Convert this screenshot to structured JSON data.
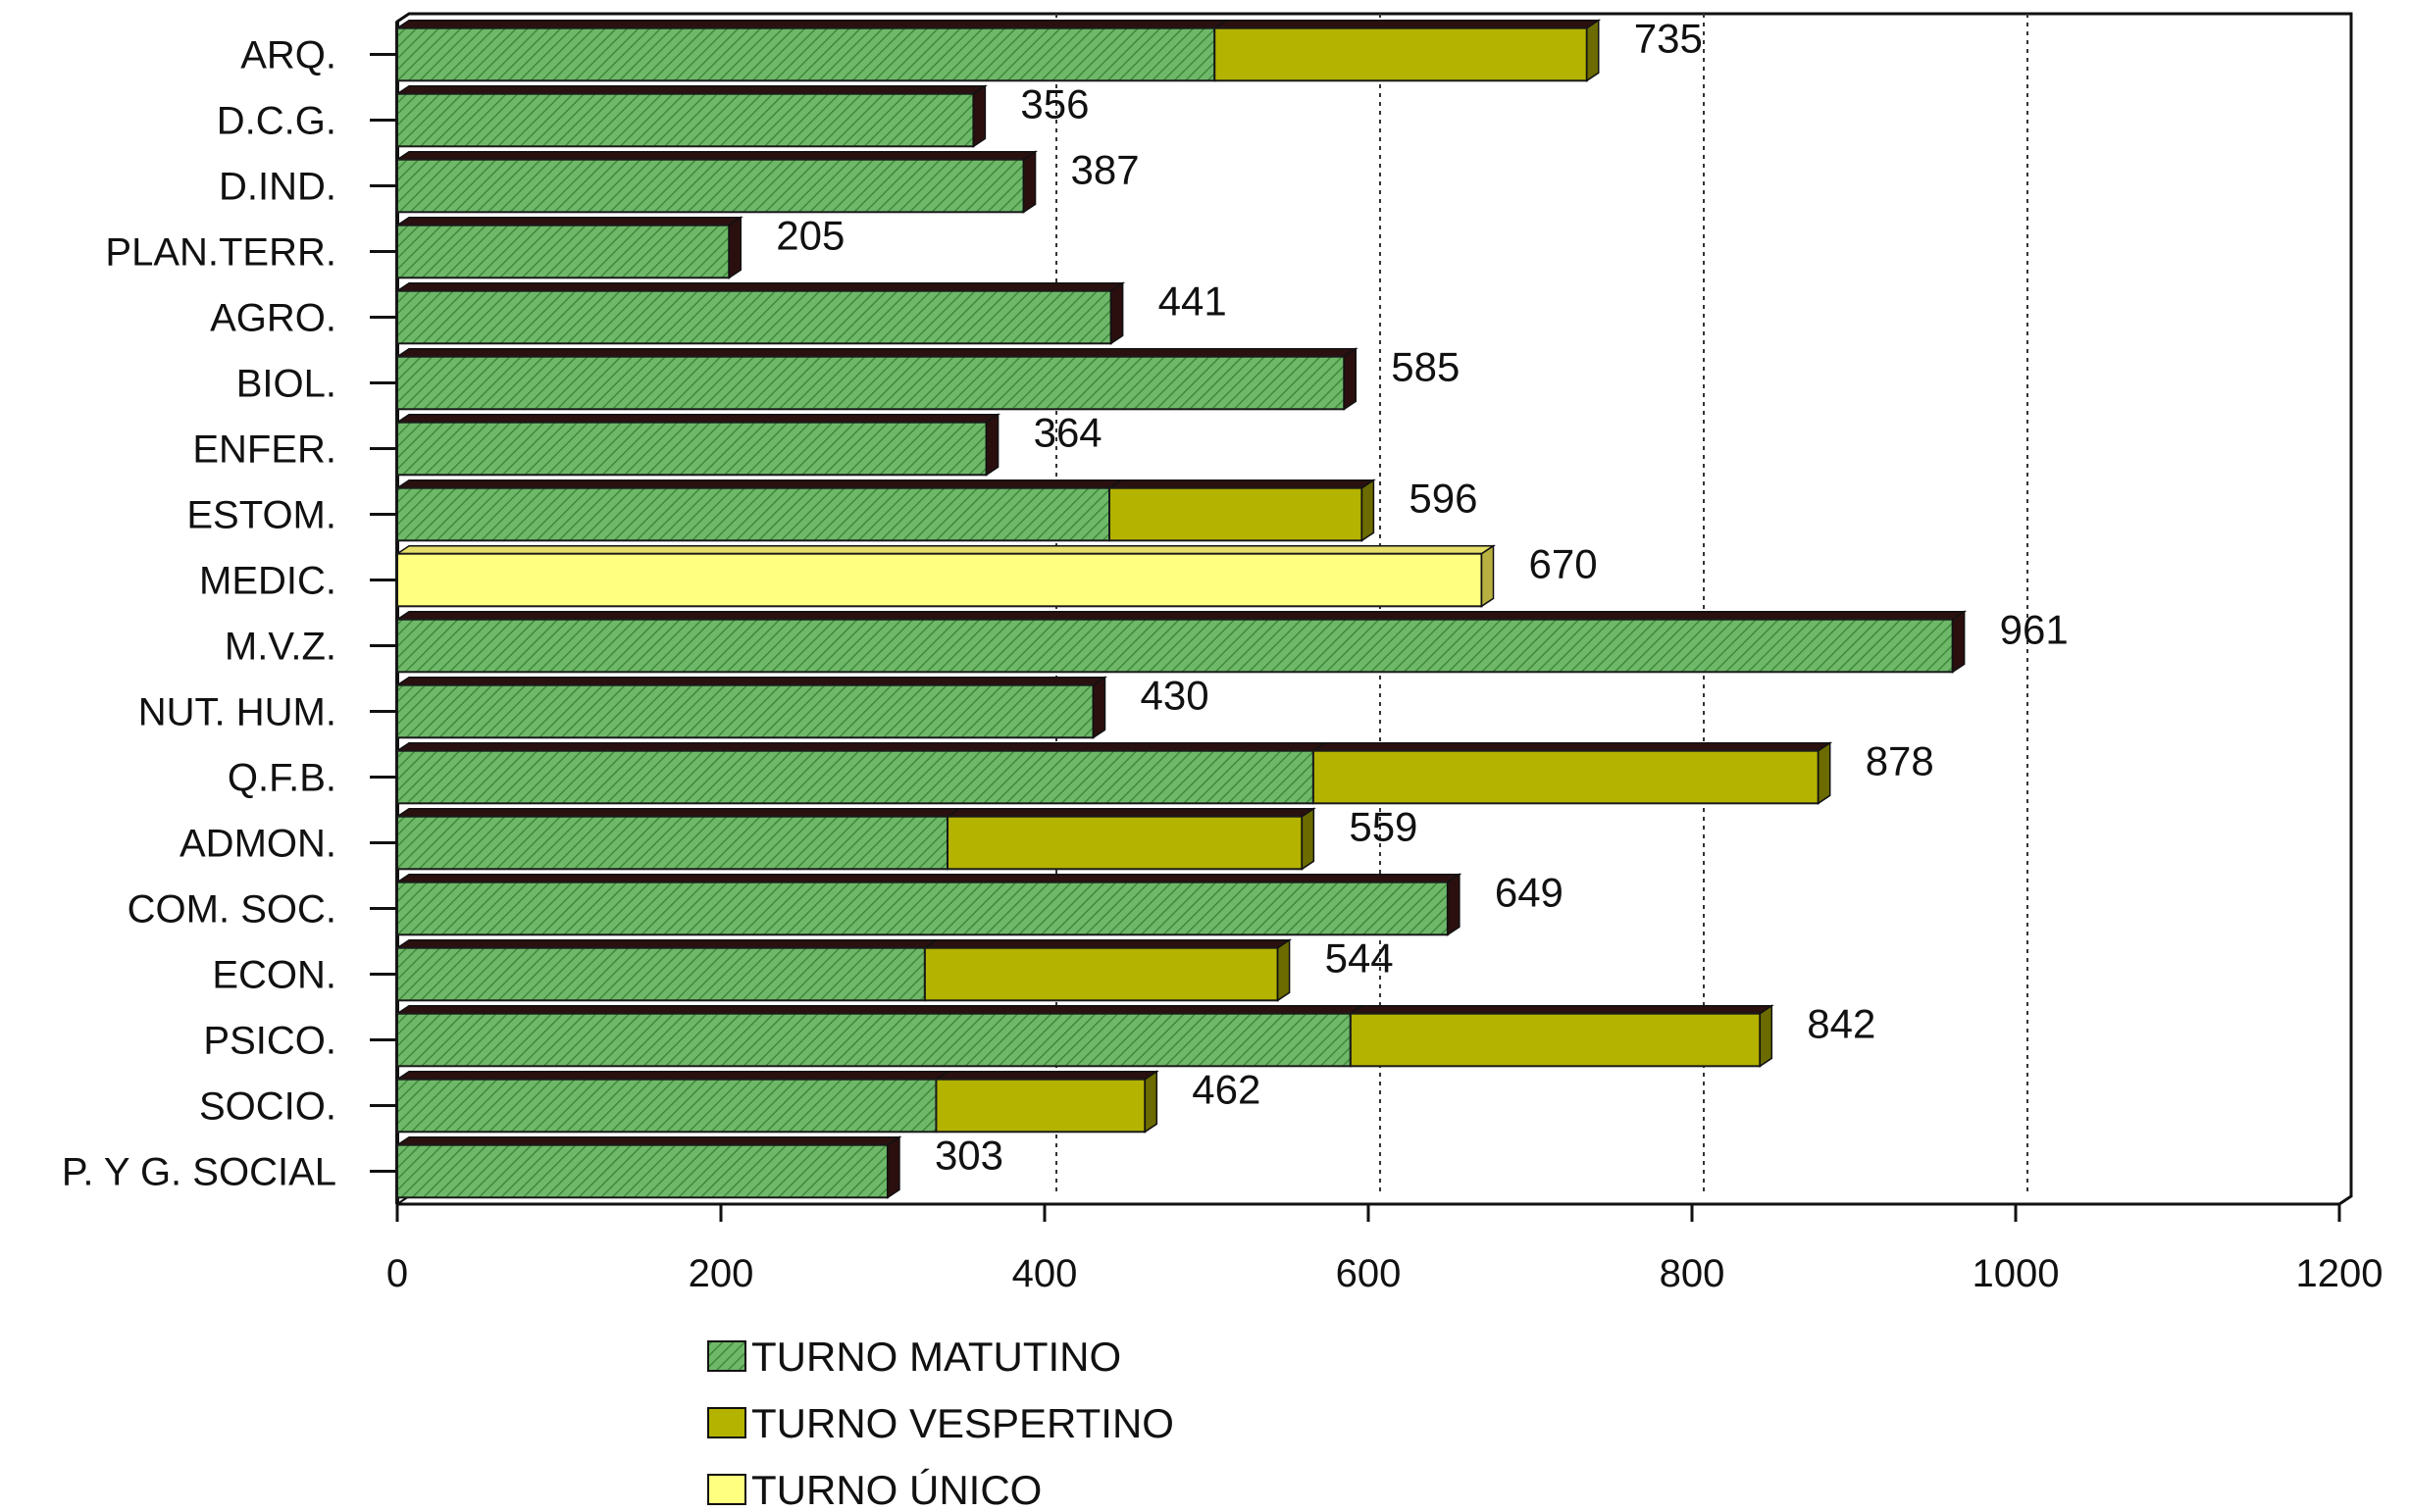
{
  "chart_data": {
    "type": "bar",
    "orientation": "horizontal",
    "stacked": true,
    "title": "",
    "xlabel": "",
    "ylabel": "",
    "xlim": [
      0,
      1200
    ],
    "x_ticks": [
      "0",
      "200",
      "400",
      "600",
      "800",
      "1000",
      "1200"
    ],
    "grid": "vertical dotted lines at 400, 600, 800, 1000",
    "legend_position": "bottom",
    "categories": [
      "ARQ.",
      "D.C.G.",
      "D.IND.",
      "PLAN.TERR.",
      "AGRO.",
      "BIOL.",
      "ENFER.",
      "ESTOM.",
      "MEDIC.",
      "M.V.Z.",
      "NUT. HUM.",
      "Q.F.B.",
      "ADMON.",
      "COM. SOC.",
      "ECON.",
      "PSICO.",
      "SOCIO.",
      "P. Y G. SOCIAL"
    ],
    "series": [
      {
        "name": "TURNO MATUTINO",
        "color": "#6fb86a",
        "values": [
          505,
          356,
          387,
          205,
          441,
          585,
          364,
          440,
          0,
          961,
          430,
          566,
          340,
          649,
          326,
          589,
          333,
          303
        ]
      },
      {
        "name": "TURNO VESPERTINO",
        "color": "#b3b300",
        "values": [
          230,
          0,
          0,
          0,
          0,
          0,
          0,
          156,
          0,
          0,
          0,
          312,
          219,
          0,
          218,
          253,
          129,
          0
        ]
      },
      {
        "name": "TURNO ÚNICO",
        "color": "#ffff80",
        "values": [
          0,
          0,
          0,
          0,
          0,
          0,
          0,
          0,
          670,
          0,
          0,
          0,
          0,
          0,
          0,
          0,
          0,
          0
        ]
      }
    ],
    "totals": [
      "735",
      "356",
      "387",
      "205",
      "441",
      "585",
      "364",
      "596",
      "670",
      "961",
      "430",
      "878",
      "559",
      "649",
      "544",
      "842",
      "462",
      "303"
    ]
  }
}
